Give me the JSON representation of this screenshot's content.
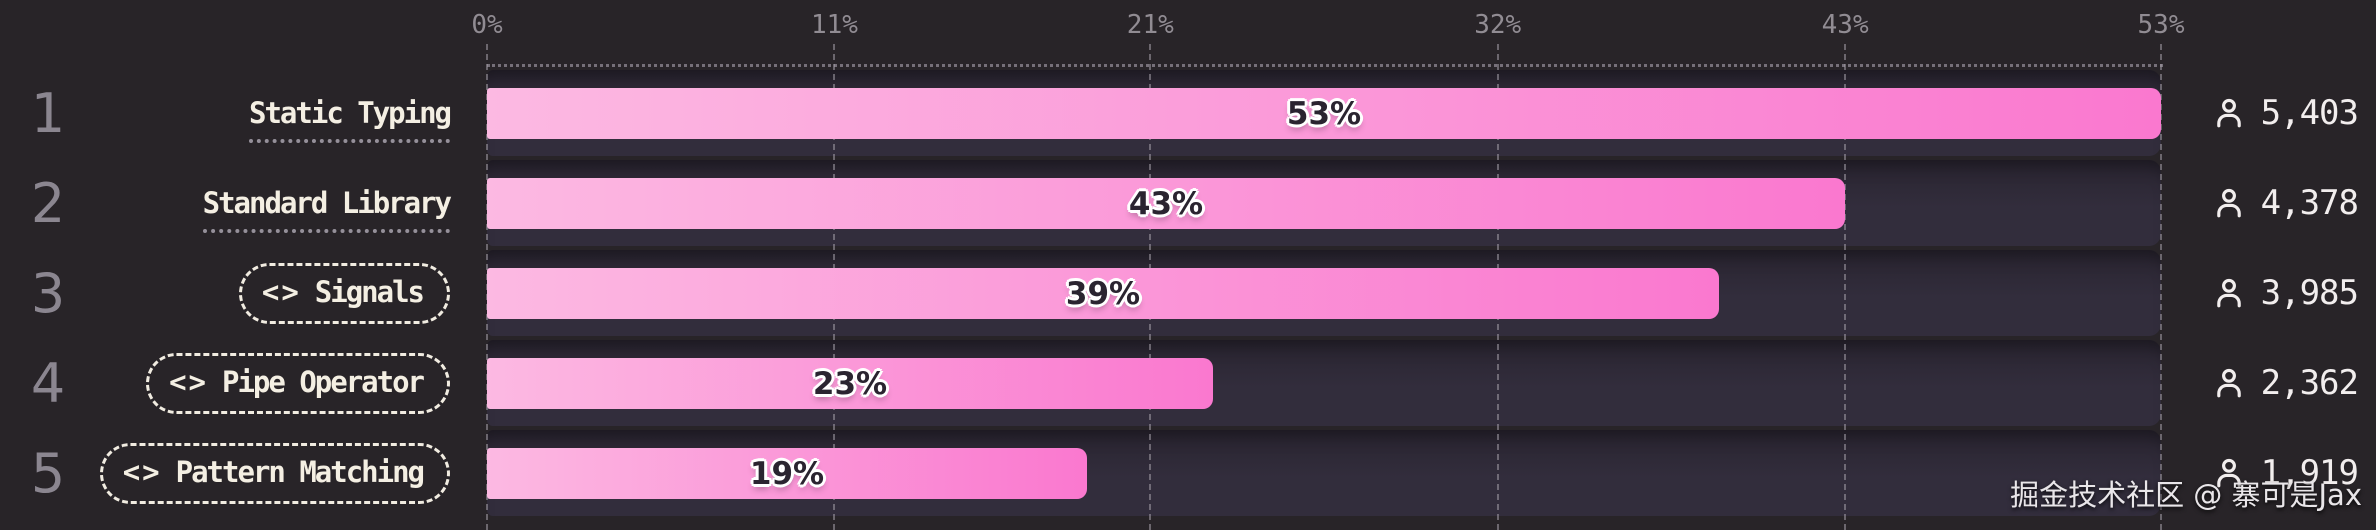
{
  "chart_data": {
    "type": "bar",
    "orientation": "horizontal",
    "title": "",
    "categories": [
      "Static Typing",
      "Standard Library",
      "Signals",
      "Pipe Operator",
      "Pattern Matching"
    ],
    "series": [
      {
        "name": "share_percent",
        "values": [
          53,
          43,
          39,
          23,
          19
        ]
      },
      {
        "name": "votes",
        "values": [
          5403,
          4378,
          3985,
          2362,
          1919
        ]
      }
    ],
    "data_labels": [
      "53%",
      "43%",
      "39%",
      "23%",
      "19%"
    ],
    "xlabel": "",
    "ylabel": "",
    "xlim": [
      0,
      53
    ],
    "tick_labels": [
      "0%",
      "11%",
      "21%",
      "32%",
      "43%",
      "53%"
    ],
    "grid": "dashed vertical gridlines on",
    "legend": "none"
  },
  "axis": {
    "max": 53,
    "ticks": [
      {
        "label": "0%",
        "value": 0
      },
      {
        "label": "11%",
        "value": 11
      },
      {
        "label": "21%",
        "value": 21
      },
      {
        "label": "32%",
        "value": 32
      },
      {
        "label": "43%",
        "value": 43
      },
      {
        "label": "53%",
        "value": 53
      }
    ]
  },
  "rows": [
    {
      "rank": "1",
      "label": "Static Typing",
      "style": "underline",
      "icon": "",
      "icon_glyph": "",
      "pct": 53,
      "pct_label": "53%",
      "count": "5,403"
    },
    {
      "rank": "2",
      "label": "Standard Library",
      "style": "underline",
      "icon": "",
      "icon_glyph": "",
      "pct": 43,
      "pct_label": "43%",
      "count": "4,378"
    },
    {
      "rank": "3",
      "label": "Signals",
      "style": "pill",
      "icon": "code-brackets",
      "icon_glyph": "<>",
      "pct": 39,
      "pct_label": "39%",
      "count": "3,985"
    },
    {
      "rank": "4",
      "label": "Pipe Operator",
      "style": "pill",
      "icon": "code-brackets",
      "icon_glyph": "<>",
      "pct": 23,
      "pct_label": "23%",
      "count": "2,362"
    },
    {
      "rank": "5",
      "label": "Pattern Matching",
      "style": "pill",
      "icon": "code-brackets",
      "icon_glyph": "<>",
      "pct": 19,
      "pct_label": "19%",
      "count": "1,919"
    }
  ],
  "icons": {
    "count_icon": "person-outline",
    "label_icon": "code-brackets"
  },
  "colors": {
    "background": "#282428",
    "track": "#322d3c",
    "bar_gradient_start": "#fcb9e2",
    "bar_gradient_end": "#fa78cf",
    "pct_text": "#2a2430",
    "label_text": "#f4efe3",
    "rank_text": "#8b8690",
    "axis_text": "#918c93",
    "count_text": "#f2eeee"
  },
  "watermark": "掘金技术社区 @ 寨可是Jax"
}
